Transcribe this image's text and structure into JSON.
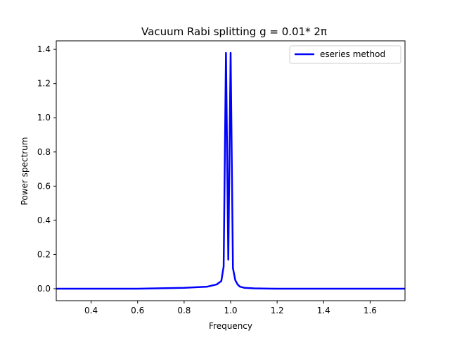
{
  "chart_data": {
    "type": "line",
    "title": "Vacuum Rabi splitting g = 0.01* 2π",
    "xlabel": "Frequency",
    "ylabel": "Power spectrum",
    "xlim": [
      0.25,
      1.75
    ],
    "ylim": [
      -0.07,
      1.45
    ],
    "xticks": [
      "0.4",
      "0.6",
      "0.8",
      "1.0",
      "1.2",
      "1.4",
      "1.6"
    ],
    "xtick_values": [
      0.4,
      0.6,
      0.8,
      1.0,
      1.2,
      1.4,
      1.6
    ],
    "yticks": [
      "0.0",
      "0.2",
      "0.4",
      "0.6",
      "0.8",
      "1.0",
      "1.2",
      "1.4"
    ],
    "ytick_values": [
      0.0,
      0.2,
      0.4,
      0.6,
      0.8,
      1.0,
      1.2,
      1.4
    ],
    "grid": false,
    "legend_position": "top-right",
    "series": [
      {
        "name": "eseries method",
        "color": "#0000ff",
        "x": [
          0.25,
          0.4,
          0.6,
          0.8,
          0.9,
          0.94,
          0.96,
          0.97,
          0.98,
          0.99,
          1.0,
          1.01,
          1.02,
          1.03,
          1.04,
          1.06,
          1.1,
          1.2,
          1.4,
          1.6,
          1.75
        ],
        "y": [
          0.0,
          0.0,
          0.0,
          0.005,
          0.012,
          0.025,
          0.045,
          0.13,
          1.38,
          0.17,
          1.38,
          0.12,
          0.05,
          0.025,
          0.012,
          0.005,
          0.002,
          0.0,
          0.0,
          0.0,
          0.0
        ]
      }
    ]
  }
}
